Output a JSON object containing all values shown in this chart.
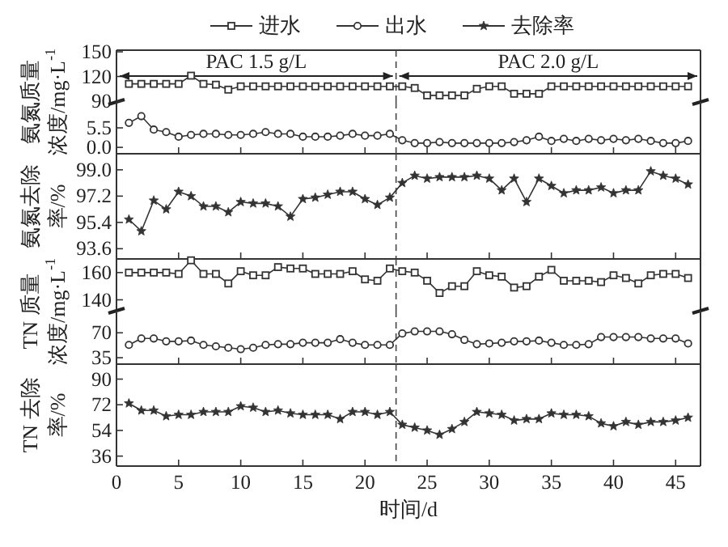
{
  "chart_data": [
    {
      "type": "line",
      "ylabel": "氨氮质量浓度/mg·L$^{-1}$",
      "legend": "top",
      "xlim": [
        0,
        47
      ],
      "ylim": [
        89,
        152
      ],
      "yticks": [
        90,
        120,
        150
      ],
      "tick_labels": "y",
      "x": [
        1,
        2,
        3,
        4,
        5,
        6,
        7,
        8,
        9,
        10,
        11,
        12,
        13,
        14,
        15,
        16,
        17,
        18,
        19,
        20,
        21,
        22,
        23,
        24,
        25,
        26,
        27,
        28,
        29,
        30,
        31,
        32,
        33,
        34,
        35,
        36,
        37,
        38,
        39,
        40,
        41,
        42,
        43,
        44,
        45,
        46
      ],
      "ref_lines": [
        {
          "axis": "x",
          "value": 22.5,
          "line_style": "dashed"
        }
      ],
      "annotations": [
        "PAC 1.5 g/L",
        "PAC 2.0 g/L"
      ],
      "series": [
        {
          "name": "进水",
          "color": "#333333",
          "marker": "square",
          "values": [
            111,
            111,
            111,
            111,
            111,
            121,
            111,
            110,
            104,
            108,
            108,
            108,
            108,
            108,
            108,
            108,
            108,
            108,
            108,
            108,
            108,
            108,
            108,
            106,
            97,
            97,
            97,
            97,
            105,
            108,
            108,
            99,
            99,
            99,
            108,
            108,
            108,
            108,
            108,
            108,
            108,
            108,
            108,
            108,
            108,
            108
          ]
        }
      ]
    },
    {
      "type": "line",
      "xlim": [
        0,
        47
      ],
      "xticks": [
        0,
        5,
        10,
        15,
        20,
        25,
        30,
        35,
        40,
        45
      ],
      "ylim": [
        -1.8,
        12.8
      ],
      "yticks": [
        {
          "value": 0,
          "label": "0.0"
        },
        {
          "value": 5.5,
          "label": "5.5"
        }
      ],
      "tick_labels": "y",
      "x": [
        1,
        2,
        3,
        4,
        5,
        6,
        7,
        8,
        9,
        10,
        11,
        12,
        13,
        14,
        15,
        16,
        17,
        18,
        19,
        20,
        21,
        22,
        23,
        24,
        25,
        26,
        27,
        28,
        29,
        30,
        31,
        32,
        33,
        34,
        35,
        36,
        37,
        38,
        39,
        40,
        41,
        42,
        43,
        44,
        45,
        46
      ],
      "ref_lines": [
        {
          "axis": "x",
          "value": 22.5,
          "line_style": "dashed"
        }
      ],
      "series": [
        {
          "name": "出水",
          "color": "#333333",
          "marker": "circle",
          "values": [
            6.9,
            8.8,
            5.0,
            4.3,
            3.0,
            3.5,
            3.8,
            3.8,
            3.5,
            3.5,
            3.8,
            4.3,
            3.8,
            3.8,
            3.0,
            3.0,
            3.0,
            3.3,
            3.8,
            3.3,
            3.3,
            3.8,
            2.0,
            1.2,
            1.2,
            1.5,
            1.2,
            1.2,
            1.2,
            1.2,
            1.2,
            1.5,
            2.0,
            3.0,
            1.8,
            2.4,
            1.8,
            2.4,
            2.0,
            2.4,
            2.0,
            2.4,
            1.8,
            1.2,
            1.2,
            1.8
          ]
        }
      ]
    },
    {
      "type": "line",
      "ylabel": "氨氮去除率/%",
      "xlim": [
        0,
        47
      ],
      "xticks": [
        0,
        5,
        10,
        15,
        20,
        25,
        30,
        35,
        40,
        45
      ],
      "ylim": [
        92.9,
        100.1
      ],
      "yticks": [
        93.6,
        95.4,
        97.2,
        {
          "value": 99,
          "label": "99.0"
        }
      ],
      "tick_labels": "y",
      "x": [
        1,
        2,
        3,
        4,
        5,
        6,
        7,
        8,
        9,
        10,
        11,
        12,
        13,
        14,
        15,
        16,
        17,
        18,
        19,
        20,
        21,
        22,
        23,
        24,
        25,
        26,
        27,
        28,
        29,
        30,
        31,
        32,
        33,
        34,
        35,
        36,
        37,
        38,
        39,
        40,
        41,
        42,
        43,
        44,
        45,
        46
      ],
      "ref_lines": [
        {
          "axis": "x",
          "value": 22.5,
          "line_style": "dashed"
        }
      ],
      "series": [
        {
          "name": "去除率",
          "color": "#333333",
          "marker": "star",
          "values": [
            95.6,
            94.8,
            96.9,
            96.3,
            97.5,
            97.2,
            96.5,
            96.5,
            96.1,
            96.8,
            96.7,
            96.7,
            96.5,
            95.8,
            97.0,
            97.1,
            97.3,
            97.5,
            97.5,
            97.0,
            96.6,
            97.1,
            98.1,
            98.6,
            98.4,
            98.5,
            98.5,
            98.5,
            98.6,
            98.4,
            97.6,
            98.4,
            96.8,
            98.4,
            97.9,
            97.4,
            97.6,
            97.6,
            97.8,
            97.4,
            97.6,
            97.6,
            98.9,
            98.6,
            98.4,
            98.0
          ]
        }
      ]
    },
    {
      "type": "line",
      "ylabel": "TN 质量浓度/mg·L$^{-1}$",
      "xlim": [
        0,
        47
      ],
      "ylim": [
        132,
        170
      ],
      "yticks": [
        140,
        160
      ],
      "tick_labels": "y",
      "x": [
        1,
        2,
        3,
        4,
        5,
        6,
        7,
        8,
        9,
        10,
        11,
        12,
        13,
        14,
        15,
        16,
        17,
        18,
        19,
        20,
        21,
        22,
        23,
        24,
        25,
        26,
        27,
        28,
        29,
        30,
        31,
        32,
        33,
        34,
        35,
        36,
        37,
        38,
        39,
        40,
        41,
        42,
        43,
        44,
        45,
        46
      ],
      "ref_lines": [
        {
          "axis": "x",
          "value": 22.5,
          "line_style": "dashed"
        }
      ],
      "series": [
        {
          "name": "进水",
          "color": "#333333",
          "marker": "square",
          "values": [
            160,
            160,
            160,
            160,
            159,
            169,
            159,
            159,
            152,
            161,
            158,
            158,
            164,
            163,
            163,
            159,
            159,
            159,
            161,
            155,
            154,
            163,
            161,
            160,
            154,
            145,
            150,
            150,
            161,
            158,
            157,
            149,
            150,
            157,
            162,
            154,
            154,
            154,
            153,
            158,
            156,
            152,
            158,
            159,
            159,
            156
          ]
        }
      ]
    },
    {
      "type": "line",
      "xlim": [
        0,
        47
      ],
      "xticks": [
        0,
        5,
        10,
        15,
        20,
        25,
        30,
        35,
        40,
        45
      ],
      "ylim": [
        26,
        101
      ],
      "yticks": [
        35,
        70
      ],
      "tick_labels": "y",
      "x": [
        1,
        2,
        3,
        4,
        5,
        6,
        7,
        8,
        9,
        10,
        11,
        12,
        13,
        14,
        15,
        16,
        17,
        18,
        19,
        20,
        21,
        22,
        23,
        24,
        25,
        26,
        27,
        28,
        29,
        30,
        31,
        32,
        33,
        34,
        35,
        36,
        37,
        38,
        39,
        40,
        41,
        42,
        43,
        44,
        45,
        46
      ],
      "ref_lines": [
        {
          "axis": "x",
          "value": 22.5,
          "line_style": "dashed"
        }
      ],
      "series": [
        {
          "name": "出水",
          "color": "#333333",
          "marker": "circle",
          "values": [
            53,
            62,
            62,
            58,
            58,
            59,
            53,
            51,
            49,
            47,
            49,
            53,
            54,
            54,
            56,
            56,
            56,
            61,
            56,
            53,
            53,
            53,
            69,
            72,
            72,
            72,
            68,
            60,
            54,
            55,
            56,
            58,
            58,
            59,
            56,
            53,
            53,
            54,
            64,
            64,
            64,
            64,
            62,
            62,
            62,
            55
          ]
        }
      ]
    },
    {
      "type": "line",
      "ylabel": "TN 去除率/%",
      "xlabel": "时间/d",
      "xlim": [
        0,
        47
      ],
      "xticks": [
        0,
        5,
        10,
        15,
        20,
        25,
        30,
        35,
        40,
        45
      ],
      "ylim": [
        29,
        100.5
      ],
      "yticks": [
        36,
        54,
        72,
        90
      ],
      "x": [
        1,
        2,
        3,
        4,
        5,
        6,
        7,
        8,
        9,
        10,
        11,
        12,
        13,
        14,
        15,
        16,
        17,
        18,
        19,
        20,
        21,
        22,
        23,
        24,
        25,
        26,
        27,
        28,
        29,
        30,
        31,
        32,
        33,
        34,
        35,
        36,
        37,
        38,
        39,
        40,
        41,
        42,
        43,
        44,
        45,
        46
      ],
      "ref_lines": [
        {
          "axis": "x",
          "value": 22.5,
          "line_style": "dashed"
        }
      ],
      "series": [
        {
          "name": "去除率",
          "color": "#333333",
          "marker": "star",
          "values": [
            73,
            68,
            68,
            64,
            65,
            65,
            67,
            67,
            67,
            71,
            70,
            67,
            68,
            66,
            65,
            65,
            65,
            62,
            67,
            67,
            65,
            67,
            58,
            56,
            54,
            51,
            55,
            60,
            67,
            66,
            65,
            61,
            62,
            62,
            66,
            65,
            65,
            64,
            59,
            57,
            60,
            58,
            60,
            60,
            61,
            63
          ]
        }
      ]
    }
  ]
}
